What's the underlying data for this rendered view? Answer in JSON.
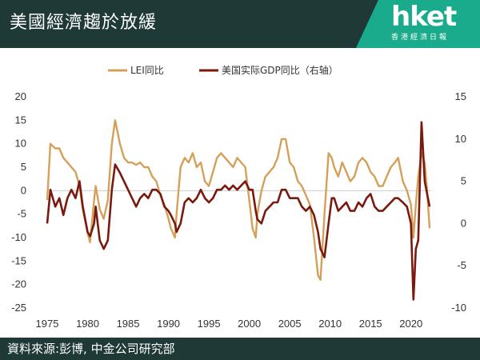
{
  "header": {
    "title": "美國經濟趨於放緩"
  },
  "brand": {
    "logo": "hket",
    "subtitle": "香港經濟日報"
  },
  "footer": {
    "source": "資料來源:彭博, 中金公司研究部"
  },
  "colors": {
    "header_bg": "#1f3a36",
    "brand_bg": "#1aab8c",
    "lei": "#d4a05a",
    "gdp": "#7a1a0e"
  },
  "chart_data": {
    "type": "line",
    "title": "",
    "xlabel": "",
    "ylabel": "",
    "legend_placement": "top",
    "grid": false,
    "xlim": [
      1975,
      2022.5
    ],
    "x_ticks": [
      1975,
      1980,
      1985,
      1990,
      1995,
      2000,
      2005,
      2010,
      2015,
      2020
    ],
    "ylim_left": [
      -25,
      20
    ],
    "y_ticks_left": [
      20,
      15,
      10,
      5,
      0,
      -5,
      -10,
      -15,
      -20,
      -25
    ],
    "ylim_right": [
      -10,
      15
    ],
    "y_ticks_right": [
      15,
      10,
      5,
      0,
      -5,
      -10
    ],
    "series": [
      {
        "name": "LEI同比",
        "axis": "left",
        "color": "#d4a05a",
        "points": [
          [
            1975,
            -2
          ],
          [
            1975.4,
            10
          ],
          [
            1976,
            9
          ],
          [
            1976.5,
            9
          ],
          [
            1977,
            7
          ],
          [
            1977.5,
            6
          ],
          [
            1978,
            5
          ],
          [
            1978.5,
            4
          ],
          [
            1979,
            1
          ],
          [
            1979.4,
            -4
          ],
          [
            1980,
            -9
          ],
          [
            1980.3,
            -11
          ],
          [
            1980.8,
            -2
          ],
          [
            1981,
            1
          ],
          [
            1981.5,
            -4
          ],
          [
            1982,
            -6
          ],
          [
            1982.5,
            -2
          ],
          [
            1983,
            10
          ],
          [
            1983.4,
            15
          ],
          [
            1984,
            10
          ],
          [
            1984.5,
            7
          ],
          [
            1985,
            6
          ],
          [
            1985.5,
            6
          ],
          [
            1986,
            5.5
          ],
          [
            1986.5,
            6
          ],
          [
            1987,
            5
          ],
          [
            1987.5,
            5
          ],
          [
            1988,
            3
          ],
          [
            1988.5,
            2
          ],
          [
            1989,
            -1
          ],
          [
            1989.5,
            -3
          ],
          [
            1990,
            -6
          ],
          [
            1990.3,
            -8
          ],
          [
            1990.8,
            -10
          ],
          [
            1991,
            -5
          ],
          [
            1991.5,
            5
          ],
          [
            1992,
            7
          ],
          [
            1992.5,
            6
          ],
          [
            1993,
            8
          ],
          [
            1993.5,
            5
          ],
          [
            1994,
            6
          ],
          [
            1994.5,
            2
          ],
          [
            1995,
            1
          ],
          [
            1995.5,
            4
          ],
          [
            1996,
            7
          ],
          [
            1996.5,
            8
          ],
          [
            1997,
            7
          ],
          [
            1997.5,
            6
          ],
          [
            1998,
            5
          ],
          [
            1998.5,
            7
          ],
          [
            1999,
            6
          ],
          [
            1999.5,
            5
          ],
          [
            2000,
            -2
          ],
          [
            2000.4,
            -8
          ],
          [
            2000.8,
            -10
          ],
          [
            2001,
            -5
          ],
          [
            2001.5,
            0
          ],
          [
            2002,
            3
          ],
          [
            2002.5,
            4
          ],
          [
            2003,
            5
          ],
          [
            2003.5,
            7
          ],
          [
            2004,
            11
          ],
          [
            2004.5,
            11
          ],
          [
            2005,
            6
          ],
          [
            2005.5,
            5
          ],
          [
            2006,
            2
          ],
          [
            2006.5,
            1
          ],
          [
            2007,
            -1
          ],
          [
            2007.5,
            -3
          ],
          [
            2008,
            -10
          ],
          [
            2008.5,
            -18
          ],
          [
            2008.8,
            -19
          ],
          [
            2009.3,
            -5
          ],
          [
            2009.8,
            8
          ],
          [
            2010.2,
            7
          ],
          [
            2010.5,
            5
          ],
          [
            2011,
            3
          ],
          [
            2011.5,
            6
          ],
          [
            2012,
            4
          ],
          [
            2012.5,
            2
          ],
          [
            2013,
            3
          ],
          [
            2013.5,
            6
          ],
          [
            2014,
            7
          ],
          [
            2014.5,
            6
          ],
          [
            2015,
            4
          ],
          [
            2015.5,
            3
          ],
          [
            2016,
            1
          ],
          [
            2016.5,
            1
          ],
          [
            2017,
            3
          ],
          [
            2017.5,
            5
          ],
          [
            2018,
            6
          ],
          [
            2018.4,
            7
          ],
          [
            2019,
            2
          ],
          [
            2019.5,
            0
          ],
          [
            2020,
            -3
          ],
          [
            2020.3,
            -10
          ],
          [
            2020.6,
            -3
          ],
          [
            2020.9,
            3
          ],
          [
            2021.3,
            8
          ],
          [
            2021.7,
            6
          ],
          [
            2022,
            0
          ],
          [
            2022.3,
            -8
          ]
        ]
      },
      {
        "name": "美国实际GDP同比（右轴）",
        "axis": "right",
        "color": "#7a1a0e",
        "points": [
          [
            1975,
            0
          ],
          [
            1975.4,
            4
          ],
          [
            1976,
            2
          ],
          [
            1976.5,
            3
          ],
          [
            1977,
            1
          ],
          [
            1977.5,
            3
          ],
          [
            1978,
            4
          ],
          [
            1978.5,
            3
          ],
          [
            1979,
            5
          ],
          [
            1979.4,
            2
          ],
          [
            1980,
            -1
          ],
          [
            1980.3,
            -1.5
          ],
          [
            1980.8,
            0
          ],
          [
            1981,
            2
          ],
          [
            1981.5,
            -2
          ],
          [
            1982,
            -3
          ],
          [
            1982.5,
            -2
          ],
          [
            1983,
            4
          ],
          [
            1983.4,
            7
          ],
          [
            1984,
            6
          ],
          [
            1984.5,
            5
          ],
          [
            1985,
            4
          ],
          [
            1985.5,
            3
          ],
          [
            1986,
            2
          ],
          [
            1986.5,
            3
          ],
          [
            1987,
            3.5
          ],
          [
            1987.5,
            3
          ],
          [
            1988,
            4
          ],
          [
            1988.5,
            4
          ],
          [
            1989,
            3.5
          ],
          [
            1989.5,
            2
          ],
          [
            1990,
            1.5
          ],
          [
            1990.3,
            1
          ],
          [
            1990.8,
            0
          ],
          [
            1991,
            -1
          ],
          [
            1991.5,
            0
          ],
          [
            1992,
            2.5
          ],
          [
            1992.5,
            3
          ],
          [
            1993,
            2.5
          ],
          [
            1993.5,
            3
          ],
          [
            1994,
            4
          ],
          [
            1994.5,
            3
          ],
          [
            1995,
            2.5
          ],
          [
            1995.5,
            3
          ],
          [
            1996,
            4
          ],
          [
            1996.5,
            4
          ],
          [
            1997,
            4.5
          ],
          [
            1997.5,
            4
          ],
          [
            1998,
            4.5
          ],
          [
            1998.5,
            4
          ],
          [
            1999,
            4.5
          ],
          [
            1999.5,
            5
          ],
          [
            2000,
            4
          ],
          [
            2000.4,
            4
          ],
          [
            2000.8,
            1.5
          ],
          [
            2001,
            0.5
          ],
          [
            2001.5,
            0
          ],
          [
            2002,
            1.5
          ],
          [
            2002.5,
            2
          ],
          [
            2003,
            2.5
          ],
          [
            2003.5,
            2.5
          ],
          [
            2004,
            4
          ],
          [
            2004.5,
            4
          ],
          [
            2005,
            3
          ],
          [
            2005.5,
            3
          ],
          [
            2006,
            3
          ],
          [
            2006.5,
            2
          ],
          [
            2007,
            1.5
          ],
          [
            2007.5,
            2
          ],
          [
            2008,
            1
          ],
          [
            2008.5,
            -1
          ],
          [
            2008.8,
            -3
          ],
          [
            2009.3,
            -4
          ],
          [
            2009.8,
            0
          ],
          [
            2010.2,
            3
          ],
          [
            2010.5,
            3
          ],
          [
            2011,
            1.5
          ],
          [
            2011.5,
            2
          ],
          [
            2012,
            2.5
          ],
          [
            2012.5,
            1.5
          ],
          [
            2013,
            1.5
          ],
          [
            2013.5,
            2.5
          ],
          [
            2014,
            2
          ],
          [
            2014.5,
            3
          ],
          [
            2015,
            3.5
          ],
          [
            2015.5,
            2
          ],
          [
            2016,
            1.5
          ],
          [
            2016.5,
            1.5
          ],
          [
            2017,
            2
          ],
          [
            2017.5,
            2.5
          ],
          [
            2018,
            3
          ],
          [
            2018.4,
            3
          ],
          [
            2019,
            2.5
          ],
          [
            2019.5,
            2
          ],
          [
            2020,
            0
          ],
          [
            2020.3,
            -9
          ],
          [
            2020.6,
            -3
          ],
          [
            2020.9,
            -2
          ],
          [
            2021.3,
            12
          ],
          [
            2021.7,
            5
          ],
          [
            2022,
            3.5
          ],
          [
            2022.3,
            2
          ]
        ]
      }
    ],
    "reference_line": {
      "axis": "left",
      "value": 0
    }
  }
}
